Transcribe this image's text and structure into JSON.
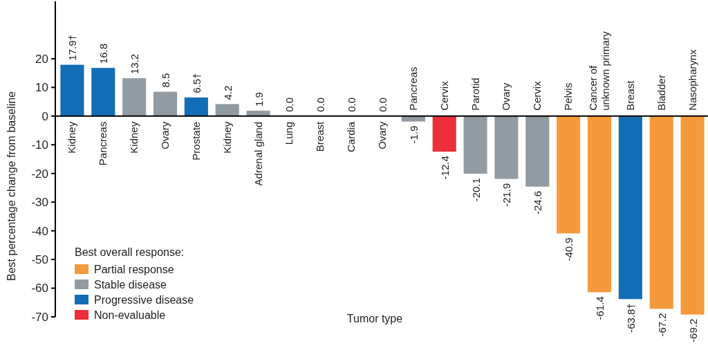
{
  "chart_data": {
    "type": "bar",
    "xlabel": "Tumor type",
    "ylabel": "Best percentage change from baseline",
    "legend_title": "Best overall response:",
    "legend": "bottom left",
    "categories": [
      "Kidney",
      "Pancreas",
      "Kidney",
      "Ovary",
      "Prostate",
      "Kidney",
      "Adrenal gland",
      "Lung",
      "Breast",
      "Cardia",
      "Ovary",
      "Pancreas",
      "Cervix",
      "Parotid",
      "Ovary",
      "Cervix",
      "Pelvis",
      "Cancer of unknown primary",
      "Breast",
      "Bladder",
      "Nasopharynx"
    ],
    "series": [
      {
        "name": "Partial response",
        "color": "#f59a3c",
        "values": [
          null,
          null,
          null,
          null,
          null,
          null,
          null,
          null,
          null,
          null,
          null,
          null,
          null,
          null,
          null,
          null,
          -40.9,
          -61.4,
          null,
          -67.2,
          -69.2
        ],
        "value_labels": [
          null,
          null,
          null,
          null,
          null,
          null,
          null,
          null,
          null,
          null,
          null,
          null,
          null,
          null,
          null,
          null,
          "-40.9",
          "-61.4",
          null,
          "-67.2",
          "-69.2"
        ]
      },
      {
        "name": "Stable disease",
        "color": "#939ba2",
        "values": [
          null,
          null,
          13.2,
          8.5,
          null,
          4.2,
          1.9,
          0,
          0,
          0,
          0,
          -1.9,
          null,
          -20.1,
          -21.9,
          -24.6,
          null,
          null,
          null,
          null,
          null
        ],
        "value_labels": [
          null,
          null,
          "13.2",
          "8.5",
          null,
          "4.2",
          "1.9",
          "0.0",
          "0.0",
          "0.0",
          "0.0",
          "-1.9",
          null,
          "-20.1",
          "-21.9",
          "-24.6",
          null,
          null,
          null,
          null,
          null
        ]
      },
      {
        "name": "Progressive disease",
        "color": "#126db5",
        "values": [
          17.9,
          16.8,
          null,
          null,
          6.5,
          null,
          null,
          null,
          null,
          null,
          null,
          null,
          null,
          null,
          null,
          null,
          null,
          null,
          -63.8,
          null,
          null
        ],
        "value_labels": [
          "17.9†",
          "16.8",
          null,
          null,
          "6.5†",
          null,
          null,
          null,
          null,
          null,
          null,
          null,
          null,
          null,
          null,
          null,
          null,
          null,
          "-63.8†",
          null,
          null
        ]
      },
      {
        "name": "Non-evaluable",
        "color": "#ee2e3b",
        "values": [
          null,
          null,
          null,
          null,
          null,
          null,
          null,
          null,
          null,
          null,
          null,
          null,
          -12.4,
          null,
          null,
          null,
          null,
          null,
          null,
          null,
          null
        ],
        "value_labels": [
          null,
          null,
          null,
          null,
          null,
          null,
          null,
          null,
          null,
          null,
          null,
          null,
          "-12.4",
          null,
          null,
          null,
          null,
          null,
          null,
          null,
          null
        ]
      }
    ],
    "ylim": [
      -70,
      40
    ],
    "yticks": [
      -70,
      -60,
      -50,
      -40,
      -30,
      -20,
      -10,
      0,
      10,
      20
    ]
  }
}
